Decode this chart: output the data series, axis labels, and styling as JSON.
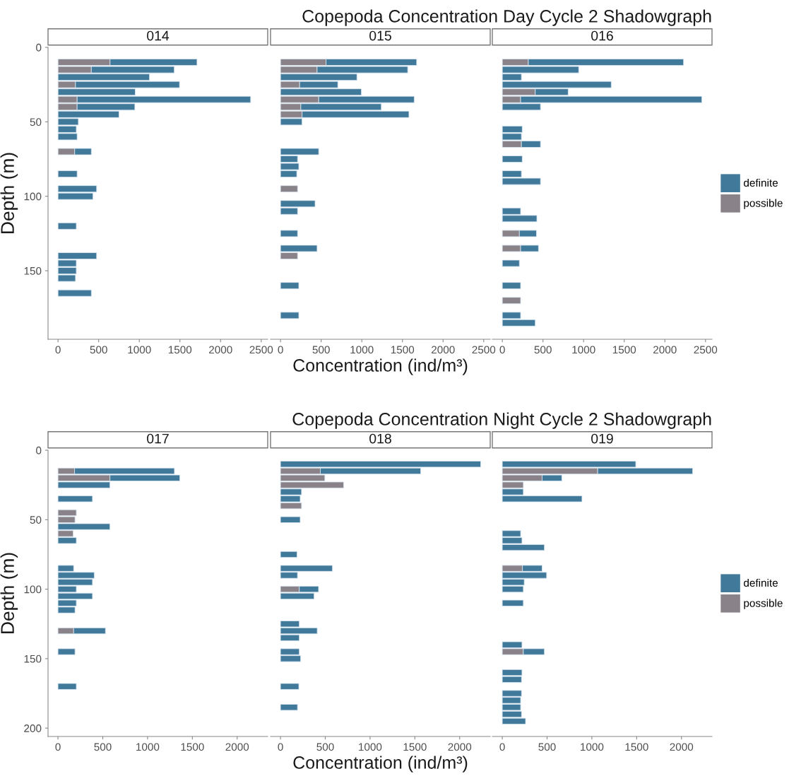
{
  "chart_data": [
    {
      "type": "bar",
      "orientation": "horizontal",
      "stacked": true,
      "subtitle": "014",
      "ylabel": "Depth (m)",
      "xlim": [
        -123,
        2580
      ],
      "xticks": [
        0,
        500,
        1000,
        1500,
        2000,
        2500
      ],
      "ylim": [
        196,
        0
      ],
      "yticks": [
        0,
        50,
        100,
        150
      ],
      "grid": false,
      "x": [
        10,
        15,
        20,
        25,
        30,
        35,
        40,
        45,
        50,
        55,
        60,
        70,
        85,
        95,
        100,
        120,
        140,
        145,
        150,
        155,
        165
      ],
      "series": [
        {
          "color": "#8a8289",
          "values": [
            640,
            410,
            null,
            215,
            null,
            235,
            235,
            null,
            null,
            null,
            null,
            205,
            null,
            null,
            null,
            null,
            null,
            null,
            null,
            null,
            null
          ]
        },
        {
          "color": "#41799a",
          "values": [
            1070,
            1020,
            1125,
            1280,
            950,
            2135,
            710,
            750,
            250,
            225,
            235,
            205,
            235,
            475,
            430,
            225,
            475,
            225,
            225,
            215,
            410
          ]
        }
      ]
    },
    {
      "type": "bar",
      "orientation": "horizontal",
      "stacked": true,
      "subtitle": "015",
      "xlabel": "Concentration (ind/m³)",
      "xlim": [
        -123,
        2580
      ],
      "xticks": [
        0,
        500,
        1000,
        1500,
        2000,
        2500
      ],
      "ylim": [
        196,
        0
      ],
      "yticks": [
        0,
        50,
        100,
        150
      ],
      "tick_labels": "x",
      "grid": false,
      "x": [
        10,
        15,
        20,
        25,
        30,
        35,
        40,
        45,
        50,
        70,
        75,
        80,
        85,
        95,
        105,
        110,
        125,
        135,
        140,
        160,
        180
      ],
      "series": [
        {
          "color": "#8a8289",
          "values": [
            560,
            450,
            null,
            235,
            null,
            470,
            250,
            265,
            null,
            null,
            null,
            null,
            null,
            210,
            null,
            null,
            null,
            null,
            210,
            null,
            null
          ]
        },
        {
          "color": "#41799a",
          "values": [
            1115,
            1115,
            940,
            470,
            995,
            1175,
            990,
            1315,
            265,
            470,
            210,
            225,
            200,
            null,
            425,
            210,
            210,
            450,
            null,
            225,
            225
          ]
        }
      ]
    },
    {
      "type": "bar",
      "orientation": "horizontal",
      "stacked": true,
      "subtitle": "016",
      "title": "Copepoda Concentration Day Cycle 2 Shadowgraph",
      "legend": "right",
      "xlim": [
        -123,
        2580
      ],
      "xticks": [
        0,
        500,
        1000,
        1500,
        2000,
        2500
      ],
      "ylim": [
        196,
        0
      ],
      "yticks": [
        0,
        50,
        100,
        150
      ],
      "tick_labels": "x",
      "grid": false,
      "x": [
        10,
        15,
        20,
        25,
        30,
        35,
        40,
        55,
        60,
        65,
        75,
        85,
        90,
        110,
        115,
        125,
        135,
        145,
        160,
        170,
        180,
        185
      ],
      "series": [
        {
          "name": "possible",
          "color": "#8a8289",
          "values": [
            320,
            null,
            null,
            null,
            405,
            225,
            null,
            null,
            null,
            235,
            null,
            null,
            null,
            null,
            null,
            210,
            225,
            null,
            null,
            225,
            null,
            null
          ]
        },
        {
          "name": "definite",
          "color": "#41799a",
          "values": [
            1910,
            940,
            235,
            1340,
            405,
            2230,
            470,
            245,
            235,
            235,
            245,
            235,
            470,
            225,
            425,
            210,
            220,
            210,
            225,
            null,
            225,
            405
          ]
        }
      ]
    },
    {
      "type": "bar",
      "orientation": "horizontal",
      "stacked": true,
      "subtitle": "017",
      "ylabel": "Depth (m)",
      "xlim": [
        -111,
        2341
      ],
      "xticks": [
        0,
        500,
        1000,
        1500,
        2000
      ],
      "ylim": [
        206,
        0
      ],
      "yticks": [
        0,
        50,
        100,
        150,
        200
      ],
      "grid": false,
      "x": [
        15,
        20,
        25,
        35,
        45,
        50,
        55,
        60,
        65,
        85,
        90,
        95,
        100,
        105,
        110,
        115,
        130,
        145,
        170
      ],
      "series": [
        {
          "color": "#8a8289",
          "values": [
            185,
            580,
            null,
            null,
            205,
            190,
            null,
            170,
            null,
            null,
            null,
            null,
            null,
            null,
            null,
            null,
            175,
            null,
            null
          ]
        },
        {
          "color": "#41799a",
          "values": [
            1115,
            780,
            580,
            385,
            null,
            null,
            580,
            null,
            205,
            175,
            405,
            385,
            205,
            385,
            205,
            190,
            355,
            190,
            205
          ]
        }
      ]
    },
    {
      "type": "bar",
      "orientation": "horizontal",
      "stacked": true,
      "subtitle": "018",
      "xlabel": "Concentration (ind/m³)",
      "xlim": [
        -111,
        2341
      ],
      "xticks": [
        0,
        500,
        1000,
        1500,
        2000
      ],
      "ylim": [
        206,
        0
      ],
      "yticks": [
        0,
        50,
        100,
        150,
        200
      ],
      "tick_labels": "x",
      "grid": false,
      "x": [
        10,
        15,
        20,
        25,
        30,
        35,
        40,
        50,
        75,
        85,
        90,
        100,
        105,
        125,
        130,
        135,
        145,
        150,
        170,
        185
      ],
      "series": [
        {
          "color": "#8a8289",
          "values": [
            null,
            445,
            495,
            705,
            null,
            null,
            235,
            null,
            null,
            null,
            null,
            210,
            null,
            null,
            null,
            null,
            null,
            null,
            null,
            null
          ]
        },
        {
          "color": "#41799a",
          "values": [
            2235,
            1120,
            null,
            null,
            235,
            220,
            null,
            220,
            185,
            580,
            190,
            215,
            375,
            210,
            410,
            210,
            210,
            225,
            205,
            190
          ]
        }
      ]
    },
    {
      "type": "bar",
      "orientation": "horizontal",
      "stacked": true,
      "subtitle": "019",
      "title": "Copepoda Concentration Night Cycle 2 Shadowgraph",
      "legend": "right",
      "xlim": [
        -111,
        2341
      ],
      "xticks": [
        0,
        500,
        1000,
        1500,
        2000
      ],
      "ylim": [
        206,
        0
      ],
      "yticks": [
        0,
        50,
        100,
        150,
        200
      ],
      "tick_labels": "x",
      "grid": false,
      "x": [
        10,
        15,
        20,
        25,
        30,
        35,
        60,
        65,
        70,
        85,
        90,
        95,
        100,
        110,
        140,
        145,
        160,
        165,
        175,
        180,
        185,
        190,
        195
      ],
      "series": [
        {
          "name": "possible",
          "color": "#8a8289",
          "values": [
            null,
            1065,
            445,
            235,
            null,
            null,
            null,
            null,
            null,
            225,
            null,
            null,
            null,
            null,
            null,
            235,
            null,
            null,
            null,
            null,
            null,
            null,
            null
          ]
        },
        {
          "name": "definite",
          "color": "#41799a",
          "values": [
            1490,
            1060,
            220,
            null,
            235,
            890,
            205,
            220,
            470,
            220,
            495,
            245,
            235,
            235,
            220,
            235,
            220,
            215,
            215,
            205,
            205,
            215,
            260
          ]
        }
      ]
    }
  ]
}
